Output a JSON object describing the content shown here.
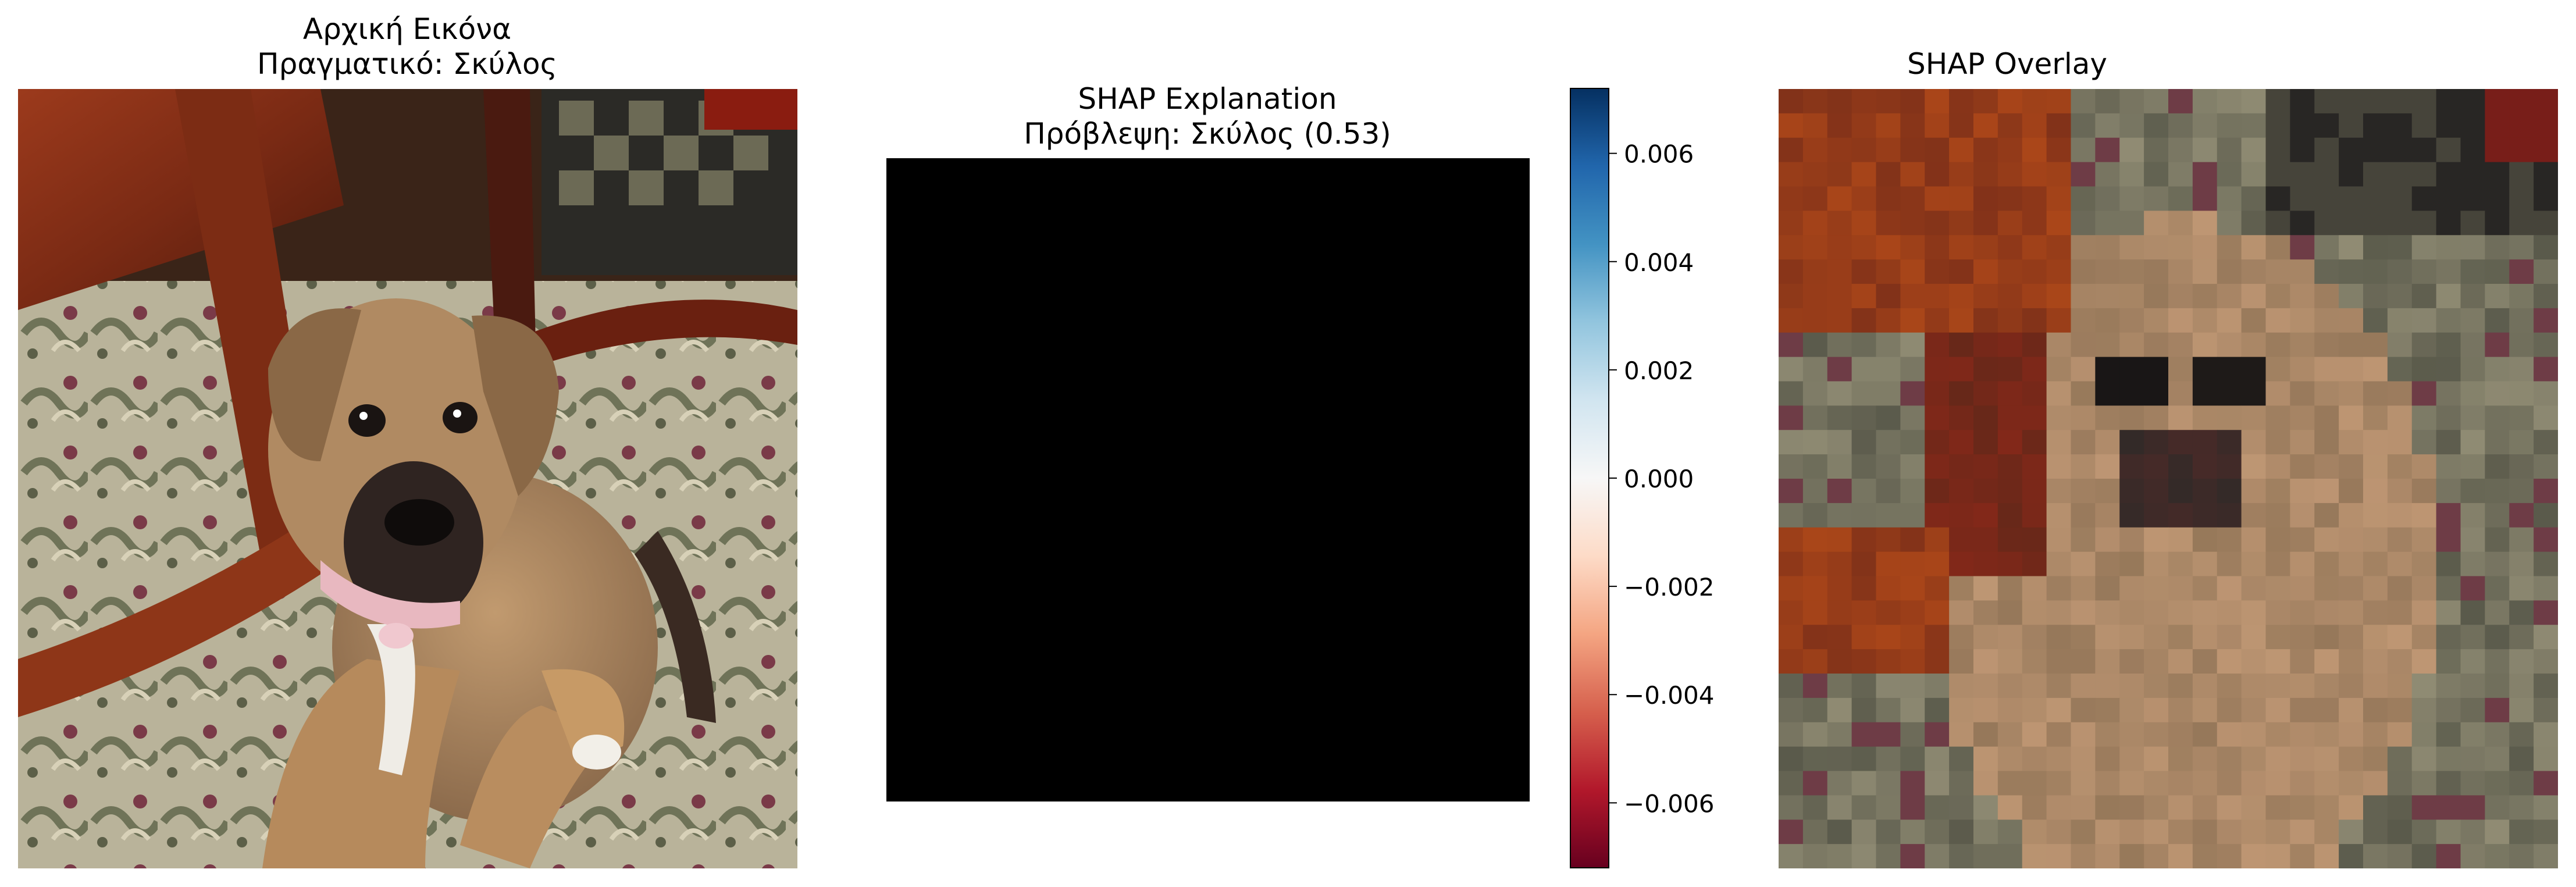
{
  "panels": {
    "original": {
      "title_line1": "Αρχική Εικόνα",
      "title_line2": "Πραγματικό: Σκύλος"
    },
    "shap": {
      "title_line1": "SHAP Explanation",
      "title_line2": "Πρόβλεψη: Σκύλος (0.53)"
    },
    "overlay": {
      "title_line1": "SHAP Overlay"
    }
  },
  "colors": {
    "shap_map": "#000000",
    "cmap_top": "#053061",
    "cmap_mid": "#f7f7f7",
    "cmap_bottom": "#67001f"
  },
  "chart_data": {
    "type": "heatmap",
    "colormap": "RdBu",
    "colorbar": {
      "vmin": -0.0072,
      "vmax": 0.0072,
      "ticks": [
        0.006,
        0.004,
        0.002,
        0.0,
        -0.002,
        -0.004,
        -0.006
      ],
      "tick_labels": [
        "0.006",
        "0.004",
        "0.002",
        "0.000",
        "−0.002",
        "−0.004",
        "−0.006"
      ]
    }
  }
}
